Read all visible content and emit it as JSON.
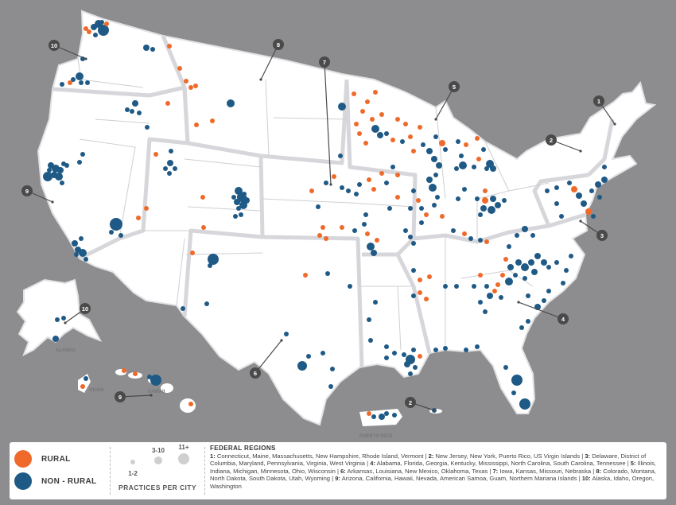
{
  "colors": {
    "background": "#8d8c8e",
    "land": "#ffffff",
    "region_border": "#d7d6da",
    "rural": "#ef6a2a",
    "non_rural": "#1f5a86",
    "callout": "#4a4a4a"
  },
  "region_callouts": [
    {
      "number": "1"
    },
    {
      "number": "2"
    },
    {
      "number": "2"
    },
    {
      "number": "3"
    },
    {
      "number": "4"
    },
    {
      "number": "5"
    },
    {
      "number": "6"
    },
    {
      "number": "7"
    },
    {
      "number": "8"
    },
    {
      "number": "9"
    },
    {
      "number": "9"
    },
    {
      "number": "10"
    },
    {
      "number": "10"
    }
  ],
  "territory_labels": {
    "alaska": "ALASKA",
    "guam": "GUAM",
    "hawaii": "HAWAII",
    "puerto_rico": "PUERTO RICO"
  },
  "legend": {
    "rural_label": "RURAL",
    "non_rural_label": "NON - RURAL",
    "size_1": "1-2",
    "size_2": "3-10",
    "size_3": "11+",
    "size_caption": "PRACTICES PER CITY",
    "regions_title": "FEDERAL REGIONS",
    "regions": [
      {
        "num": "1:",
        "text": "Connecticut, Maine, Massachusetts, New Hampshire, Rhode Island, Vermont"
      },
      {
        "num": "2:",
        "text": "New Jersey, New York, Puerto Rico, US Virgin Islands"
      },
      {
        "num": "3:",
        "text": "Delaware, District of Columbia, Maryland, Pennsylvania, Virginia, West Virginia"
      },
      {
        "num": "4:",
        "text": "Alabama, Florida, Georgia, Kentucky, Mississippi, North Carolina, South Carolina, Tennessee"
      },
      {
        "num": "5:",
        "text": "Illinois, Indiana, Michigan, Minnesota, Ohio, Wisconsin"
      },
      {
        "num": "6:",
        "text": "Arkansas, Louisiana, New Mexico, Oklahoma, Texas"
      },
      {
        "num": "7:",
        "text": "Iowa, Kansas, Missouri, Nebraska"
      },
      {
        "num": "8:",
        "text": "Colorado, Montana, North Dakota, South Dakota, Utah, Wyoming"
      },
      {
        "num": "9:",
        "text": "Arizona, California, Hawaii, Nevada, American Samoa, Guam, Northern Mariana Islands"
      },
      {
        "num": "10:",
        "text": "Alaska, Idaho, Oregon, Washington"
      }
    ]
  }
}
